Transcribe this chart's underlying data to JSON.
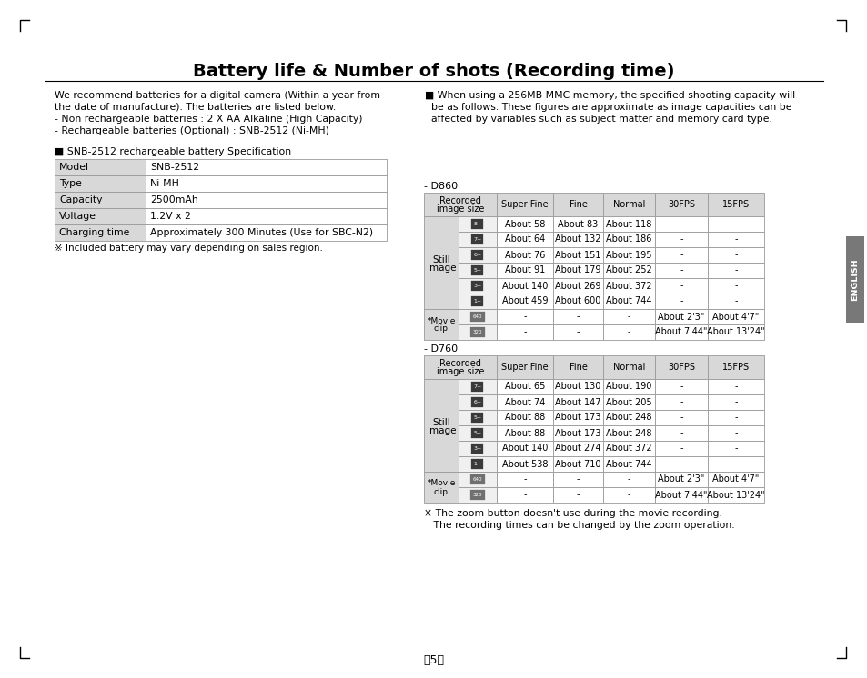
{
  "title": "Battery life & Number of shots (Recording time)",
  "page_number": "】5】",
  "left_text": [
    "We recommend batteries for a digital camera (Within a year from",
    "the date of manufacture). The batteries are listed below.",
    "- Non rechargeable batteries : 2 X AA Alkaline (High Capacity)",
    "- Rechargeable batteries (Optional) : SNB-2512 (Ni-MH)"
  ],
  "right_text": [
    "■ When using a 256MB MMC memory, the specified shooting capacity will",
    "  be as follows. These figures are approximate as image capacities can be",
    "  affected by variables such as subject matter and memory card type."
  ],
  "spec_title": "■ SNB-2512 rechargeable battery Specification",
  "spec_rows": [
    [
      "Model",
      "SNB-2512"
    ],
    [
      "Type",
      "Ni-MH"
    ],
    [
      "Capacity",
      "2500mAh"
    ],
    [
      "Voltage",
      "1.2V x 2"
    ],
    [
      "Charging time",
      "Approximately 300 Minutes (Use for SBC-N2)"
    ]
  ],
  "spec_note": "※ Included battery may vary depending on sales region.",
  "table_headers": [
    "Recorded\nimage size",
    "Super Fine",
    "Fine",
    "Normal",
    "30FPS",
    "15FPS"
  ],
  "d860_label": "- D860",
  "d860_still": [
    [
      "8+",
      "About 58",
      "About 83",
      "About 118",
      "-",
      "-"
    ],
    [
      "7+",
      "About 64",
      "About 132",
      "About 186",
      "-",
      "-"
    ],
    [
      "6+",
      "About 76",
      "About 151",
      "About 195",
      "-",
      "-"
    ],
    [
      "5+",
      "About 91",
      "About 179",
      "About 252",
      "-",
      "-"
    ],
    [
      "3+",
      "About 140",
      "About 269",
      "About 372",
      "-",
      "-"
    ],
    [
      "1+",
      "About 459",
      "About 600",
      "About 744",
      "-",
      "-"
    ]
  ],
  "d860_movie": [
    [
      "640",
      "-",
      "-",
      "-",
      "About 2'3\"",
      "About 4'7\""
    ],
    [
      "320",
      "-",
      "-",
      "-",
      "About 7'44\"",
      "About 13'24\""
    ]
  ],
  "d760_label": "- D760",
  "d760_still": [
    [
      "7+",
      "About 65",
      "About 130",
      "About 190",
      "-",
      "-"
    ],
    [
      "6+",
      "About 74",
      "About 147",
      "About 205",
      "-",
      "-"
    ],
    [
      "5+",
      "About 88",
      "About 173",
      "About 248",
      "-",
      "-"
    ],
    [
      "5+",
      "About 88",
      "About 173",
      "About 248",
      "-",
      "-"
    ],
    [
      "3+",
      "About 140",
      "About 274",
      "About 372",
      "-",
      "-"
    ],
    [
      "1+",
      "About 538",
      "About 710",
      "About 744",
      "-",
      "-"
    ]
  ],
  "d760_movie": [
    [
      "640",
      "-",
      "-",
      "-",
      "About 2'3\"",
      "About 4'7\""
    ],
    [
      "320",
      "-",
      "-",
      "-",
      "About 7'44\"",
      "About 13'24\""
    ]
  ],
  "footer": [
    "※ The zoom button doesn't use during the movie recording.",
    "   The recording times can be changed by the zoom operation."
  ],
  "english_tab": "ENGLISH",
  "gray_light": "#d8d8d8",
  "gray_mid": "#c8c8c8",
  "white": "#ffffff",
  "border": "#999999"
}
